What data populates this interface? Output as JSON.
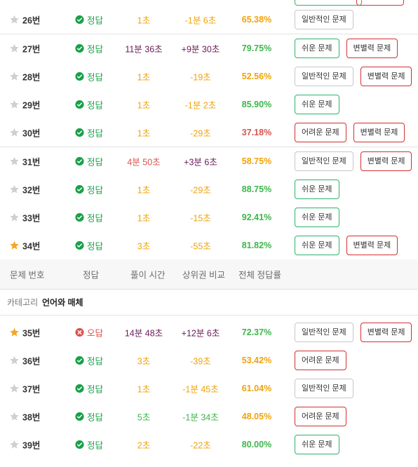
{
  "group1": [
    {
      "num": "26번",
      "starred": false,
      "result": "정답",
      "correct": true,
      "time": "1초",
      "time_color": "orange",
      "compare": "-1분 6초",
      "compare_color": "orange",
      "rate": "65.38%",
      "rate_color": "orange",
      "tags": [
        {
          "label": "일반적인 문제",
          "kind": "normal"
        }
      ]
    }
  ],
  "group2": [
    {
      "num": "27번",
      "starred": false,
      "result": "정답",
      "correct": true,
      "time": "11분 36초",
      "time_color": "purple",
      "compare": "+9분 30초",
      "compare_color": "purple",
      "rate": "79.75%",
      "rate_color": "green",
      "tags": [
        {
          "label": "쉬운 문제",
          "kind": "easy"
        },
        {
          "label": "변별력 문제",
          "kind": "disc"
        }
      ]
    },
    {
      "num": "28번",
      "starred": false,
      "result": "정답",
      "correct": true,
      "time": "1초",
      "time_color": "orange",
      "compare": "-19초",
      "compare_color": "orange",
      "rate": "52.56%",
      "rate_color": "orange",
      "tags": [
        {
          "label": "일반적인 문제",
          "kind": "normal"
        },
        {
          "label": "변별력 문제",
          "kind": "disc"
        }
      ]
    },
    {
      "num": "29번",
      "starred": false,
      "result": "정답",
      "correct": true,
      "time": "1초",
      "time_color": "orange",
      "compare": "-1분 2초",
      "compare_color": "orange",
      "rate": "85.90%",
      "rate_color": "green",
      "tags": [
        {
          "label": "쉬운 문제",
          "kind": "easy"
        }
      ]
    },
    {
      "num": "30번",
      "starred": false,
      "result": "정답",
      "correct": true,
      "time": "1초",
      "time_color": "orange",
      "compare": "-29초",
      "compare_color": "orange",
      "rate": "37.18%",
      "rate_color": "red",
      "tags": [
        {
          "label": "어려운 문제",
          "kind": "hard"
        },
        {
          "label": "변별력 문제",
          "kind": "disc"
        }
      ]
    }
  ],
  "group3": [
    {
      "num": "31번",
      "starred": false,
      "result": "정답",
      "correct": true,
      "time": "4분 50초",
      "time_color": "red",
      "compare": "+3분 6초",
      "compare_color": "purple",
      "rate": "58.75%",
      "rate_color": "orange",
      "tags": [
        {
          "label": "일반적인 문제",
          "kind": "normal"
        },
        {
          "label": "변별력 문제",
          "kind": "disc"
        }
      ]
    },
    {
      "num": "32번",
      "starred": false,
      "result": "정답",
      "correct": true,
      "time": "1초",
      "time_color": "orange",
      "compare": "-29초",
      "compare_color": "orange",
      "rate": "88.75%",
      "rate_color": "green",
      "tags": [
        {
          "label": "쉬운 문제",
          "kind": "easy"
        }
      ]
    },
    {
      "num": "33번",
      "starred": false,
      "result": "정답",
      "correct": true,
      "time": "1초",
      "time_color": "orange",
      "compare": "-15초",
      "compare_color": "orange",
      "rate": "92.41%",
      "rate_color": "green",
      "tags": [
        {
          "label": "쉬운 문제",
          "kind": "easy"
        }
      ]
    },
    {
      "num": "34번",
      "starred": true,
      "result": "정답",
      "correct": true,
      "time": "3초",
      "time_color": "orange",
      "compare": "-55초",
      "compare_color": "orange",
      "rate": "81.82%",
      "rate_color": "green",
      "tags": [
        {
          "label": "쉬운 문제",
          "kind": "easy"
        },
        {
          "label": "변별력 문제",
          "kind": "disc"
        }
      ]
    }
  ],
  "header": {
    "num": "문제 번호",
    "result": "정답",
    "time": "풀이 시간",
    "compare": "상위권 비교",
    "rate": "전체 정답률"
  },
  "category": {
    "label": "카테고리",
    "value": "언어와 매체"
  },
  "group4": [
    {
      "num": "35번",
      "starred": true,
      "result": "오답",
      "correct": false,
      "time": "14분 48초",
      "time_color": "purple",
      "compare": "+12분 6초",
      "compare_color": "purple",
      "rate": "72.37%",
      "rate_color": "green",
      "tags": [
        {
          "label": "일반적인 문제",
          "kind": "normal"
        },
        {
          "label": "변별력 문제",
          "kind": "disc"
        }
      ]
    },
    {
      "num": "36번",
      "starred": false,
      "result": "정답",
      "correct": true,
      "time": "3초",
      "time_color": "orange",
      "compare": "-39초",
      "compare_color": "orange",
      "rate": "53.42%",
      "rate_color": "orange",
      "tags": [
        {
          "label": "어려운 문제",
          "kind": "hard"
        }
      ]
    },
    {
      "num": "37번",
      "starred": false,
      "result": "정답",
      "correct": true,
      "time": "1초",
      "time_color": "orange",
      "compare": "-1분 45초",
      "compare_color": "orange",
      "rate": "61.04%",
      "rate_color": "orange",
      "tags": [
        {
          "label": "일반적인 문제",
          "kind": "normal"
        }
      ]
    },
    {
      "num": "38번",
      "starred": false,
      "result": "정답",
      "correct": true,
      "time": "5초",
      "time_color": "green",
      "compare": "-1분 34초",
      "compare_color": "green",
      "rate": "48.05%",
      "rate_color": "orange",
      "tags": [
        {
          "label": "어려운 문제",
          "kind": "hard"
        }
      ]
    },
    {
      "num": "39번",
      "starred": false,
      "result": "정답",
      "correct": true,
      "time": "2초",
      "time_color": "orange",
      "compare": "-22초",
      "compare_color": "orange",
      "rate": "80.00%",
      "rate_color": "green",
      "tags": [
        {
          "label": "쉬운 문제",
          "kind": "easy"
        }
      ]
    }
  ],
  "colors": {
    "orange": "#f0a30a",
    "purple": "#6a1b5a",
    "red": "#d9534f",
    "green": "#3cb64a",
    "star_on": "#f5a623",
    "star_off": "#cfcfcf"
  }
}
